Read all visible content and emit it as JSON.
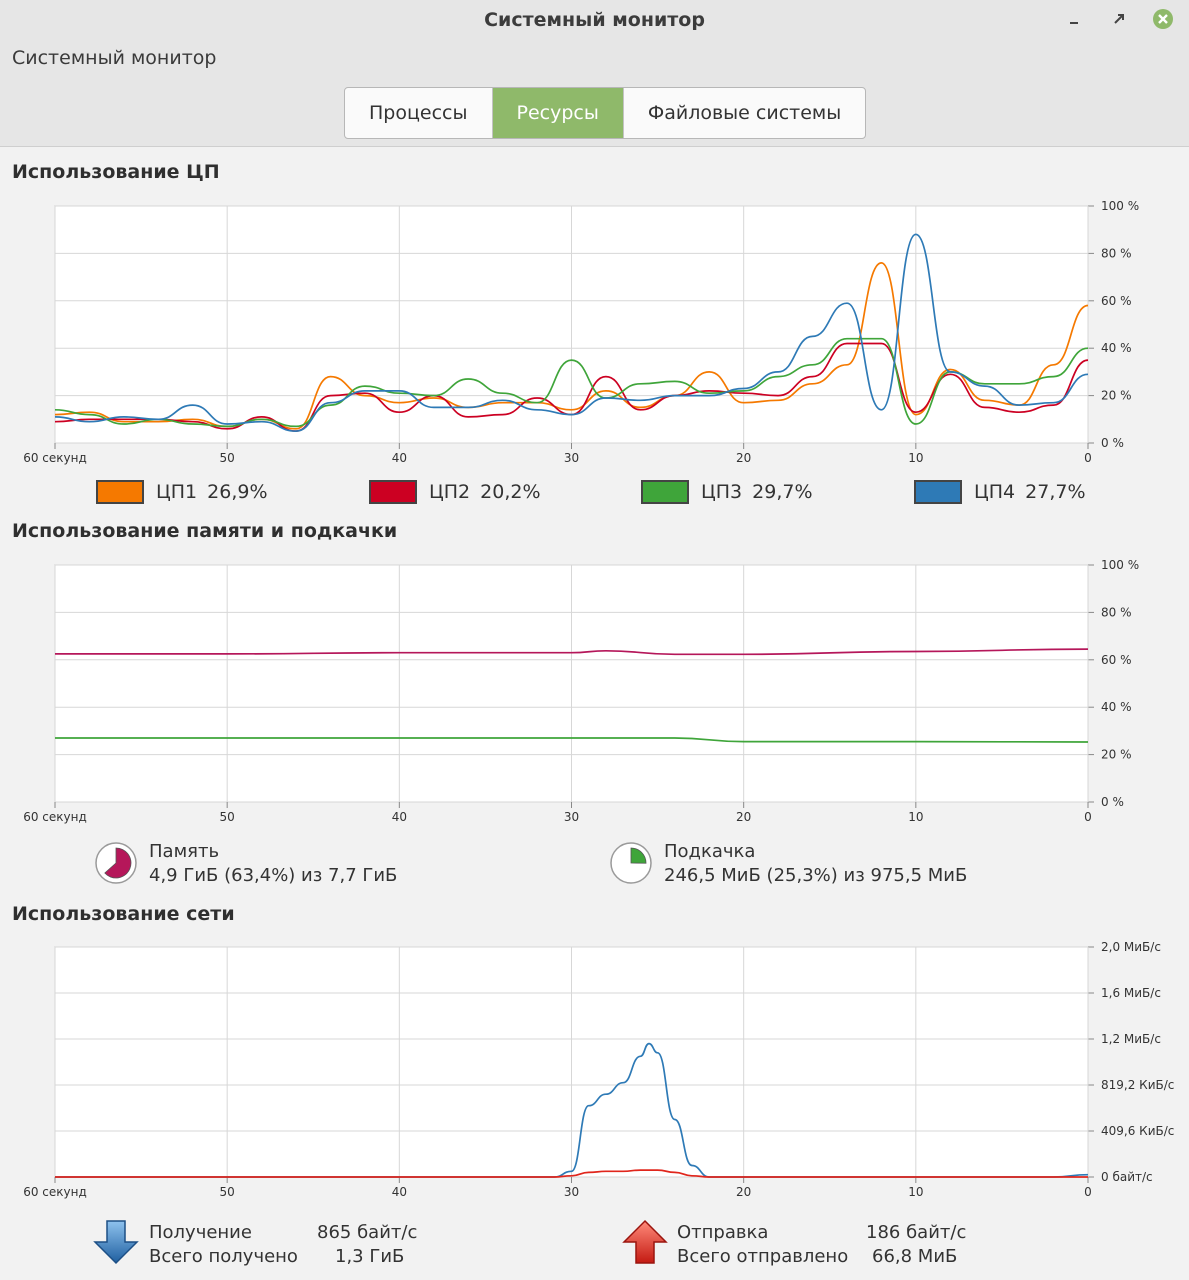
{
  "window": {
    "title": "Системный монитор"
  },
  "header": {
    "app_title": "Системный монитор"
  },
  "tabs": [
    {
      "label": "Процессы"
    },
    {
      "label": "Ресурсы"
    },
    {
      "label": "Файловые системы"
    }
  ],
  "x_ticks": [
    "60 секунд",
    "50",
    "40",
    "30",
    "20",
    "10",
    "0"
  ],
  "cpu": {
    "title": "Использование ЦП",
    "y_ticks": [
      "100 %",
      "80 %",
      "60 %",
      "40 %",
      "20 %",
      "0 %"
    ],
    "legend": [
      {
        "label": "ЦП1",
        "value": "26,9%",
        "color": "#f57900"
      },
      {
        "label": "ЦП2",
        "value": "20,2%",
        "color": "#cc0022"
      },
      {
        "label": "ЦП3",
        "value": "29,7%",
        "color": "#3fa53a"
      },
      {
        "label": "ЦП4",
        "value": "27,7%",
        "color": "#2e7ab6"
      }
    ]
  },
  "memory": {
    "title": "Использование памяти и подкачки",
    "y_ticks": [
      "100 %",
      "80 %",
      "60 %",
      "40 %",
      "20 %",
      "0 %"
    ],
    "ram": {
      "label": "Память",
      "detail": "4,9 ГиБ (63,4%) из 7,7 ГиБ",
      "color": "#b5175a",
      "fraction": 0.634
    },
    "swap": {
      "label": "Подкачка",
      "detail": "246,5 МиБ (25,3%) из 975,5 МиБ",
      "color": "#3fa53a",
      "fraction": 0.253
    }
  },
  "network": {
    "title": "Использование сети",
    "y_ticks": [
      "2,0 МиБ/с",
      "1,6 МиБ/с",
      "1,2 МиБ/с",
      "819,2 КиБ/с",
      "409,6 КиБ/с",
      "0 байт/с"
    ],
    "receive": {
      "label": "Получение",
      "rate": "865 байт/с",
      "total_label": "Всего получено",
      "total": "1,3 ГиБ",
      "icon": "arrow-down-icon",
      "color": "#2e7ab6"
    },
    "send": {
      "label": "Отправка",
      "rate": "186 байт/с",
      "total_label": "Всего отправлено",
      "total": "66,8 МиБ",
      "icon": "arrow-up-icon",
      "color": "#e0261c"
    }
  },
  "chart_data": [
    {
      "type": "line",
      "title": "Использование ЦП",
      "x": [
        60,
        58,
        56,
        54,
        52,
        50,
        48,
        46,
        44,
        42,
        40,
        38,
        36,
        34,
        32,
        30,
        28,
        26,
        24,
        22,
        20,
        18,
        16,
        14,
        12,
        10,
        8,
        6,
        4,
        2,
        0
      ],
      "xlabel": "секунд",
      "ylim": [
        0,
        100
      ],
      "grid": true,
      "series": [
        {
          "name": "ЦП1",
          "values": [
            12,
            13,
            9,
            9,
            10,
            7,
            10,
            6,
            28,
            20,
            17,
            19,
            15,
            17,
            17,
            14,
            22,
            15,
            20,
            30,
            17,
            18,
            25,
            33,
            76,
            12,
            31,
            18,
            16,
            33,
            58
          ]
        },
        {
          "name": "ЦП2",
          "values": [
            9,
            10,
            10,
            10,
            9,
            6,
            11,
            5,
            20,
            21,
            13,
            20,
            11,
            12,
            19,
            12,
            28,
            14,
            20,
            22,
            21,
            20,
            28,
            42,
            42,
            13,
            29,
            15,
            13,
            16,
            35
          ]
        },
        {
          "name": "ЦП3",
          "values": [
            14,
            12,
            8,
            10,
            8,
            7,
            10,
            7,
            16,
            24,
            21,
            20,
            27,
            21,
            17,
            35,
            19,
            25,
            26,
            21,
            22,
            28,
            33,
            44,
            44,
            8,
            30,
            25,
            25,
            28,
            40
          ]
        },
        {
          "name": "ЦП4",
          "values": [
            11,
            9,
            11,
            10,
            16,
            8,
            9,
            5,
            17,
            22,
            22,
            15,
            15,
            18,
            14,
            12,
            19,
            18,
            20,
            20,
            23,
            30,
            45,
            59,
            14,
            88,
            30,
            24,
            16,
            17,
            29
          ]
        }
      ]
    },
    {
      "type": "line",
      "title": "Использование памяти и подкачки",
      "x": [
        60,
        50,
        40,
        30,
        28,
        24,
        20,
        10,
        0
      ],
      "xlabel": "секунд",
      "ylim": [
        0,
        100
      ],
      "grid": true,
      "series": [
        {
          "name": "Память",
          "values": [
            62.5,
            62.5,
            63,
            63,
            63.8,
            62.3,
            62.3,
            63.5,
            64.5
          ]
        },
        {
          "name": "Подкачка",
          "values": [
            27,
            27,
            27,
            27,
            27,
            27,
            25.5,
            25.5,
            25.3
          ]
        }
      ]
    },
    {
      "type": "line",
      "title": "Использование сети",
      "x": [
        60,
        50,
        40,
        31,
        30,
        29,
        28,
        27,
        26,
        25.5,
        25,
        24,
        23,
        22,
        20,
        10,
        2,
        0
      ],
      "xlabel": "секунд",
      "ylabel": "МиБ/с",
      "ylim": [
        0,
        2.0
      ],
      "grid": true,
      "series": [
        {
          "name": "Получение",
          "values": [
            0,
            0,
            0,
            0,
            0.05,
            0.62,
            0.72,
            0.82,
            1.05,
            1.16,
            1.08,
            0.5,
            0.1,
            0,
            0,
            0,
            0,
            0.02
          ]
        },
        {
          "name": "Отправка",
          "values": [
            0,
            0,
            0,
            0,
            0.01,
            0.04,
            0.05,
            0.05,
            0.06,
            0.06,
            0.06,
            0.04,
            0.01,
            0,
            0,
            0,
            0,
            0
          ]
        }
      ]
    }
  ]
}
